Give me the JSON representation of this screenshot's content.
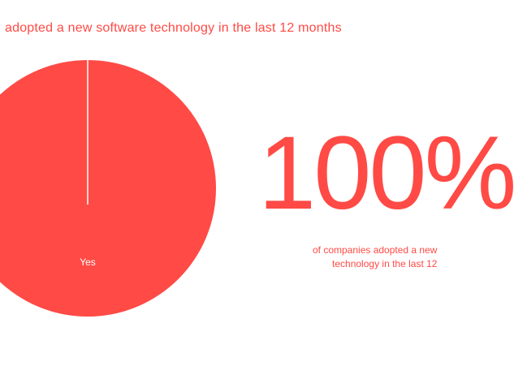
{
  "title": "adopted a new software technology in the last 12 months",
  "stat": {
    "value": "100%",
    "caption_line1": "of companies adopted a new",
    "caption_line2": "technology in the last 12"
  },
  "colors": {
    "accent": "#ff4a45",
    "background": "#ffffff"
  },
  "chart_data": {
    "type": "pie",
    "title": "adopted a new software technology in the last 12 months",
    "categories": [
      "Yes"
    ],
    "values": [
      100
    ],
    "colors": [
      "#ff4a45"
    ]
  }
}
